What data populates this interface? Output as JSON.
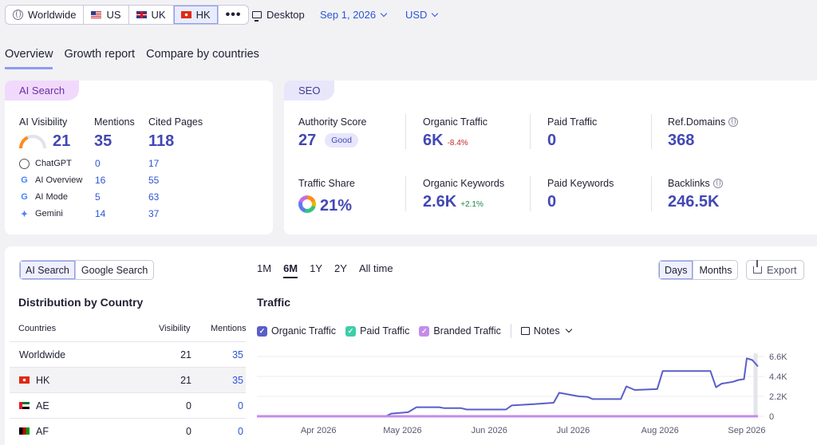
{
  "topbar": {
    "databases": [
      {
        "label": "Worldwide",
        "icon": "globe-icon"
      },
      {
        "label": "US",
        "icon": "us-flag-icon"
      },
      {
        "label": "UK",
        "icon": "uk-flag-icon"
      },
      {
        "label": "HK",
        "icon": "hk-flag-icon",
        "active": true
      }
    ],
    "more_icon": "more-dots-icon",
    "device": "Desktop",
    "date": "Sep 1, 2026",
    "currency": "USD"
  },
  "tabs": [
    "Overview",
    "Growth report",
    "Compare by countries"
  ],
  "ai_search": {
    "tag": "AI Search",
    "headers": {
      "visibility": "AI Visibility",
      "mentions": "Mentions",
      "cited": "Cited Pages"
    },
    "totals": {
      "visibility": "21",
      "mentions": "35",
      "cited": "118"
    },
    "rows": [
      {
        "name": "ChatGPT",
        "mentions": "0",
        "cited": "17",
        "icon": "chatgpt-icon"
      },
      {
        "name": "AI Overview",
        "mentions": "16",
        "cited": "55",
        "icon": "google-icon"
      },
      {
        "name": "AI Mode",
        "mentions": "5",
        "cited": "63",
        "icon": "google-icon"
      },
      {
        "name": "Gemini",
        "mentions": "14",
        "cited": "37",
        "icon": "gemini-icon"
      }
    ]
  },
  "seo": {
    "tag": "SEO",
    "authority_label": "Authority Score",
    "authority_value": "27",
    "authority_badge": "Good",
    "organic_traffic_label": "Organic Traffic",
    "organic_traffic_value": "6K",
    "organic_traffic_change": "-8.4%",
    "paid_traffic_label": "Paid Traffic",
    "paid_traffic_value": "0",
    "ref_domains_label": "Ref.Domains",
    "ref_domains_value": "368",
    "traffic_share_label": "Traffic Share",
    "traffic_share_value": "21%",
    "organic_keywords_label": "Organic Keywords",
    "organic_keywords_value": "2.6K",
    "organic_keywords_change": "+2.1%",
    "paid_keywords_label": "Paid Keywords",
    "paid_keywords_value": "0",
    "backlinks_label": "Backlinks",
    "backlinks_value": "246.5K"
  },
  "distribution": {
    "toggle": [
      "AI Search",
      "Google Search"
    ],
    "title": "Distribution by Country",
    "columns": [
      "Countries",
      "Visibility",
      "Mentions"
    ],
    "rows": [
      {
        "name": "Worldwide",
        "visibility": "21",
        "mentions": "35"
      },
      {
        "name": "HK",
        "visibility": "21",
        "mentions": "35",
        "flag": "hk-flag-icon"
      },
      {
        "name": "AE",
        "visibility": "0",
        "mentions": "0",
        "flag": "ae-flag-icon"
      },
      {
        "name": "AF",
        "visibility": "0",
        "mentions": "0",
        "flag": "af-flag-icon"
      }
    ]
  },
  "traffic": {
    "ranges": [
      "1M",
      "6M",
      "1Y",
      "2Y",
      "All time"
    ],
    "active_range": "6M",
    "granularity": [
      "Days",
      "Months"
    ],
    "export": "Export",
    "title": "Traffic",
    "legend": [
      {
        "label": "Organic Traffic",
        "color": "#5a5ec8"
      },
      {
        "label": "Paid Traffic",
        "color": "#3ccfa8"
      },
      {
        "label": "Branded Traffic",
        "color": "#c48ce8"
      }
    ],
    "notes": "Notes"
  },
  "chart_data": {
    "type": "line",
    "x_labels": [
      "Apr 2026",
      "May 2026",
      "Jun 2026",
      "Jul 2026",
      "Aug 2026",
      "Sep 2026"
    ],
    "y_ticks": [
      "6.6K",
      "4.4K",
      "2.2K",
      "0"
    ],
    "ylim": [
      0,
      6600
    ],
    "series": [
      {
        "name": "Organic Traffic",
        "color": "#5a5ec8",
        "points": [
          [
            "2026-03-10",
            0
          ],
          [
            "2026-04-25",
            0
          ],
          [
            "2026-04-27",
            300
          ],
          [
            "2026-05-03",
            450
          ],
          [
            "2026-05-06",
            1000
          ],
          [
            "2026-05-14",
            1000
          ],
          [
            "2026-05-16",
            900
          ],
          [
            "2026-05-22",
            900
          ],
          [
            "2026-05-24",
            750
          ],
          [
            "2026-06-07",
            750
          ],
          [
            "2026-06-09",
            1200
          ],
          [
            "2026-06-17",
            1350
          ],
          [
            "2026-06-24",
            1500
          ],
          [
            "2026-06-26",
            2600
          ],
          [
            "2026-07-03",
            2200
          ],
          [
            "2026-07-06",
            2150
          ],
          [
            "2026-07-08",
            1900
          ],
          [
            "2026-07-18",
            1900
          ],
          [
            "2026-07-20",
            3300
          ],
          [
            "2026-07-23",
            2900
          ],
          [
            "2026-07-31",
            3000
          ],
          [
            "2026-08-02",
            5000
          ],
          [
            "2026-08-19",
            5000
          ],
          [
            "2026-08-21",
            3200
          ],
          [
            "2026-08-23",
            3600
          ],
          [
            "2026-08-27",
            3800
          ],
          [
            "2026-08-29",
            4000
          ],
          [
            "2026-08-31",
            4100
          ],
          [
            "2026-09-01",
            6400
          ],
          [
            "2026-09-03",
            6200
          ],
          [
            "2026-09-05",
            5500
          ]
        ]
      },
      {
        "name": "Branded Traffic",
        "color": "#c48ce8",
        "points": [
          [
            "2026-03-10",
            0
          ],
          [
            "2026-09-05",
            0
          ]
        ]
      }
    ]
  }
}
